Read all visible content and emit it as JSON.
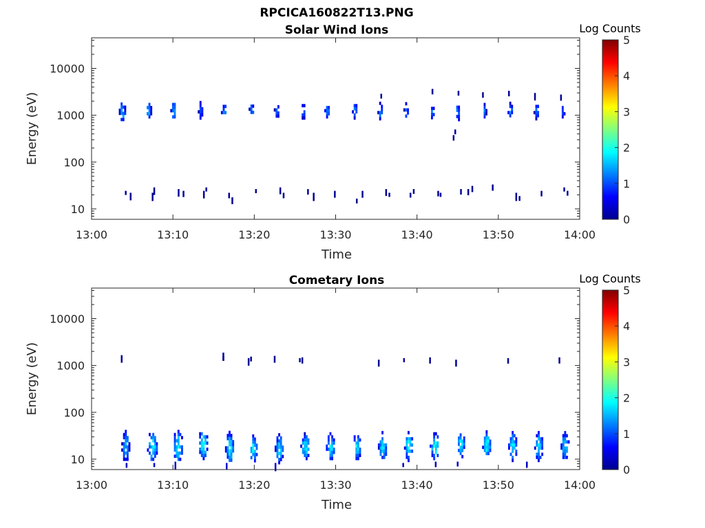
{
  "figure": {
    "title": "RPCICA160822T13.PNG"
  },
  "chart_data": [
    {
      "type": "heatmap",
      "title": "Solar Wind Ions",
      "xlabel": "Time",
      "ylabel": "Energy (eV)",
      "x_ticks": [
        "13:00",
        "13:10",
        "13:20",
        "13:30",
        "13:40",
        "13:50",
        "14:00"
      ],
      "xlim_minutes": [
        0,
        60
      ],
      "y_ticks": [
        "10",
        "100",
        "1000",
        "10000"
      ],
      "y_scale": "log",
      "ylim": [
        6,
        45000
      ],
      "colorbar": {
        "label": "Log Counts",
        "ticks": [
          "0",
          "1",
          "2",
          "3",
          "4",
          "5"
        ],
        "range": [
          0,
          5
        ],
        "colormap": "jet"
      },
      "clusters": [
        {
          "t": 3.7,
          "e": 1300,
          "dt": 0.7,
          "decades": 0.45,
          "level": 1.1
        },
        {
          "t": 6.9,
          "e": 1350,
          "dt": 0.7,
          "decades": 0.4,
          "level": 1.1
        },
        {
          "t": 10.0,
          "e": 1350,
          "dt": 0.65,
          "decades": 0.4,
          "level": 1.0
        },
        {
          "t": 13.3,
          "e": 1350,
          "dt": 0.5,
          "decades": 0.35,
          "level": 0.9
        },
        {
          "t": 16.2,
          "e": 1300,
          "dt": 0.6,
          "decades": 0.35,
          "level": 0.9
        },
        {
          "t": 19.6,
          "e": 1400,
          "dt": 0.6,
          "decades": 0.3,
          "level": 0.9
        },
        {
          "t": 22.7,
          "e": 1350,
          "dt": 0.6,
          "decades": 0.3,
          "level": 0.9
        },
        {
          "t": 25.9,
          "e": 1350,
          "dt": 0.6,
          "decades": 0.35,
          "level": 0.9
        },
        {
          "t": 28.9,
          "e": 1300,
          "dt": 0.6,
          "decades": 0.3,
          "level": 0.9
        },
        {
          "t": 32.3,
          "e": 1350,
          "dt": 0.6,
          "decades": 0.35,
          "level": 0.9
        },
        {
          "t": 35.4,
          "e": 1300,
          "dt": 0.55,
          "decades": 0.35,
          "level": 1.0
        },
        {
          "t": 38.6,
          "e": 1350,
          "dt": 0.55,
          "decades": 0.3,
          "level": 0.9
        },
        {
          "t": 41.8,
          "e": 1250,
          "dt": 0.6,
          "decades": 0.3,
          "level": 0.9
        },
        {
          "t": 44.9,
          "e": 1250,
          "dt": 0.6,
          "decades": 0.35,
          "level": 0.9
        },
        {
          "t": 48.2,
          "e": 1300,
          "dt": 0.45,
          "decades": 0.3,
          "level": 0.8
        },
        {
          "t": 51.4,
          "e": 1300,
          "dt": 0.55,
          "decades": 0.35,
          "level": 0.9
        },
        {
          "t": 54.6,
          "e": 1300,
          "dt": 0.55,
          "decades": 0.35,
          "level": 0.9
        },
        {
          "t": 57.8,
          "e": 1300,
          "dt": 0.45,
          "decades": 0.3,
          "level": 0.8
        }
      ],
      "sparse_points": [
        {
          "t": 4.2,
          "e": 22,
          "level": 0.1
        },
        {
          "t": 4.8,
          "e": 20,
          "level": 0.1
        },
        {
          "t": 7.5,
          "e": 20,
          "level": 0.1
        },
        {
          "t": 7.7,
          "e": 26,
          "level": 0.1
        },
        {
          "t": 10.7,
          "e": 24,
          "level": 0.1
        },
        {
          "t": 11.3,
          "e": 22,
          "level": 0.1
        },
        {
          "t": 13.8,
          "e": 22,
          "level": 0.1
        },
        {
          "t": 14.1,
          "e": 26,
          "level": 0.1
        },
        {
          "t": 16.9,
          "e": 20,
          "level": 0.1
        },
        {
          "t": 17.3,
          "e": 16,
          "level": 0.1
        },
        {
          "t": 20.2,
          "e": 24,
          "level": 0.1
        },
        {
          "t": 23.2,
          "e": 26,
          "level": 0.1
        },
        {
          "t": 23.6,
          "e": 20,
          "level": 0.1
        },
        {
          "t": 26.6,
          "e": 24,
          "level": 0.1
        },
        {
          "t": 27.3,
          "e": 20,
          "level": 0.1
        },
        {
          "t": 29.9,
          "e": 22,
          "level": 0.1
        },
        {
          "t": 32.6,
          "e": 15,
          "level": 0.1
        },
        {
          "t": 33.3,
          "e": 22,
          "level": 0.1
        },
        {
          "t": 36.2,
          "e": 24,
          "level": 0.1
        },
        {
          "t": 36.6,
          "e": 20,
          "level": 0.1
        },
        {
          "t": 39.2,
          "e": 20,
          "level": 0.1
        },
        {
          "t": 39.6,
          "e": 24,
          "level": 0.1
        },
        {
          "t": 42.6,
          "e": 22,
          "level": 0.1
        },
        {
          "t": 42.9,
          "e": 20,
          "level": 0.1
        },
        {
          "t": 45.4,
          "e": 24,
          "level": 0.1
        },
        {
          "t": 46.3,
          "e": 24,
          "level": 0.1
        },
        {
          "t": 46.8,
          "e": 28,
          "level": 0.1
        },
        {
          "t": 49.3,
          "e": 30,
          "level": 0.1
        },
        {
          "t": 52.2,
          "e": 20,
          "level": 0.1
        },
        {
          "t": 52.6,
          "e": 17,
          "level": 0.1
        },
        {
          "t": 55.3,
          "e": 22,
          "level": 0.1
        },
        {
          "t": 58.1,
          "e": 26,
          "level": 0.1
        },
        {
          "t": 58.5,
          "e": 22,
          "level": 0.1
        },
        {
          "t": 44.7,
          "e": 450,
          "level": 0.1
        },
        {
          "t": 44.5,
          "e": 340,
          "level": 0.1
        },
        {
          "t": 35.6,
          "e": 2600,
          "level": 0.1
        },
        {
          "t": 41.9,
          "e": 3300,
          "level": 0.1
        },
        {
          "t": 45.1,
          "e": 3000,
          "level": 0.1
        },
        {
          "t": 48.1,
          "e": 2800,
          "level": 0.1
        },
        {
          "t": 51.3,
          "e": 3000,
          "level": 0.1
        },
        {
          "t": 54.5,
          "e": 2700,
          "level": 0.1
        },
        {
          "t": 57.7,
          "e": 2500,
          "level": 0.1
        }
      ]
    },
    {
      "type": "heatmap",
      "title": "Cometary Ions",
      "xlabel": "Time",
      "ylabel": "Energy (eV)",
      "x_ticks": [
        "13:00",
        "13:10",
        "13:20",
        "13:30",
        "13:40",
        "13:50",
        "14:00"
      ],
      "xlim_minutes": [
        0,
        60
      ],
      "y_ticks": [
        "10",
        "100",
        "1000",
        "10000"
      ],
      "y_scale": "log",
      "ylim": [
        6,
        45000
      ],
      "colorbar": {
        "label": "Log Counts",
        "ticks": [
          "0",
          "1",
          "2",
          "3",
          "4",
          "5"
        ],
        "range": [
          0,
          5
        ],
        "colormap": "jet"
      },
      "clusters": [
        {
          "t": 4.1,
          "e": 20,
          "dt": 0.9,
          "decades": 0.65,
          "level": 1.1
        },
        {
          "t": 7.4,
          "e": 20,
          "dt": 1.2,
          "decades": 0.65,
          "level": 1.3
        },
        {
          "t": 10.5,
          "e": 20,
          "dt": 1.2,
          "decades": 0.65,
          "level": 1.3
        },
        {
          "t": 13.6,
          "e": 22,
          "dt": 1.2,
          "decades": 0.6,
          "level": 1.4
        },
        {
          "t": 16.9,
          "e": 18,
          "dt": 1.0,
          "decades": 0.7,
          "level": 1.3
        },
        {
          "t": 19.8,
          "e": 18,
          "dt": 1.0,
          "decades": 0.55,
          "level": 1.3
        },
        {
          "t": 23.0,
          "e": 18,
          "dt": 1.0,
          "decades": 0.6,
          "level": 1.2
        },
        {
          "t": 26.2,
          "e": 20,
          "dt": 1.1,
          "decades": 0.55,
          "level": 1.3
        },
        {
          "t": 29.3,
          "e": 20,
          "dt": 1.0,
          "decades": 0.55,
          "level": 1.3
        },
        {
          "t": 32.5,
          "e": 20,
          "dt": 1.0,
          "decades": 0.55,
          "level": 1.3
        },
        {
          "t": 35.7,
          "e": 20,
          "dt": 1.0,
          "decades": 0.6,
          "level": 1.3
        },
        {
          "t": 38.9,
          "e": 20,
          "dt": 1.0,
          "decades": 0.6,
          "level": 1.4
        },
        {
          "t": 42.1,
          "e": 20,
          "dt": 1.1,
          "decades": 0.55,
          "level": 1.4
        },
        {
          "t": 45.3,
          "e": 22,
          "dt": 1.0,
          "decades": 0.55,
          "level": 1.3
        },
        {
          "t": 48.5,
          "e": 22,
          "dt": 1.0,
          "decades": 0.55,
          "level": 1.4
        },
        {
          "t": 51.7,
          "e": 20,
          "dt": 1.0,
          "decades": 0.6,
          "level": 1.3
        },
        {
          "t": 54.9,
          "e": 20,
          "dt": 1.0,
          "decades": 0.6,
          "level": 1.3
        },
        {
          "t": 58.1,
          "e": 20,
          "dt": 0.9,
          "decades": 0.6,
          "level": 1.2
        }
      ],
      "sparse_points": [
        {
          "t": 3.7,
          "e": 1500,
          "level": 0.1
        },
        {
          "t": 16.2,
          "e": 1700,
          "level": 0.1
        },
        {
          "t": 16.2,
          "e": 1450,
          "level": 0.1
        },
        {
          "t": 19.3,
          "e": 1300,
          "level": 0.1
        },
        {
          "t": 19.6,
          "e": 1400,
          "level": 0.1
        },
        {
          "t": 22.5,
          "e": 1450,
          "level": 0.1
        },
        {
          "t": 25.6,
          "e": 1300,
          "level": 0.1
        },
        {
          "t": 25.9,
          "e": 1350,
          "level": 0.1
        },
        {
          "t": 35.3,
          "e": 1200,
          "level": 0.1
        },
        {
          "t": 38.4,
          "e": 1300,
          "level": 0.1
        },
        {
          "t": 41.6,
          "e": 1350,
          "level": 0.1
        },
        {
          "t": 44.8,
          "e": 1200,
          "level": 0.1
        },
        {
          "t": 51.2,
          "e": 1300,
          "level": 0.1
        },
        {
          "t": 57.5,
          "e": 1350,
          "level": 0.1
        },
        {
          "t": 4.3,
          "e": 7.5,
          "level": 0.3
        },
        {
          "t": 7.7,
          "e": 7.5,
          "level": 0.4
        },
        {
          "t": 10.3,
          "e": 8,
          "level": 0.3
        },
        {
          "t": 16.6,
          "e": 7.5,
          "level": 0.4
        },
        {
          "t": 22.6,
          "e": 7.5,
          "level": 0.4
        },
        {
          "t": 38.3,
          "e": 7.5,
          "level": 0.3
        },
        {
          "t": 42.3,
          "e": 8,
          "level": 0.3
        },
        {
          "t": 45.0,
          "e": 8,
          "level": 0.3
        },
        {
          "t": 53.5,
          "e": 8,
          "level": 0.3
        }
      ]
    }
  ]
}
